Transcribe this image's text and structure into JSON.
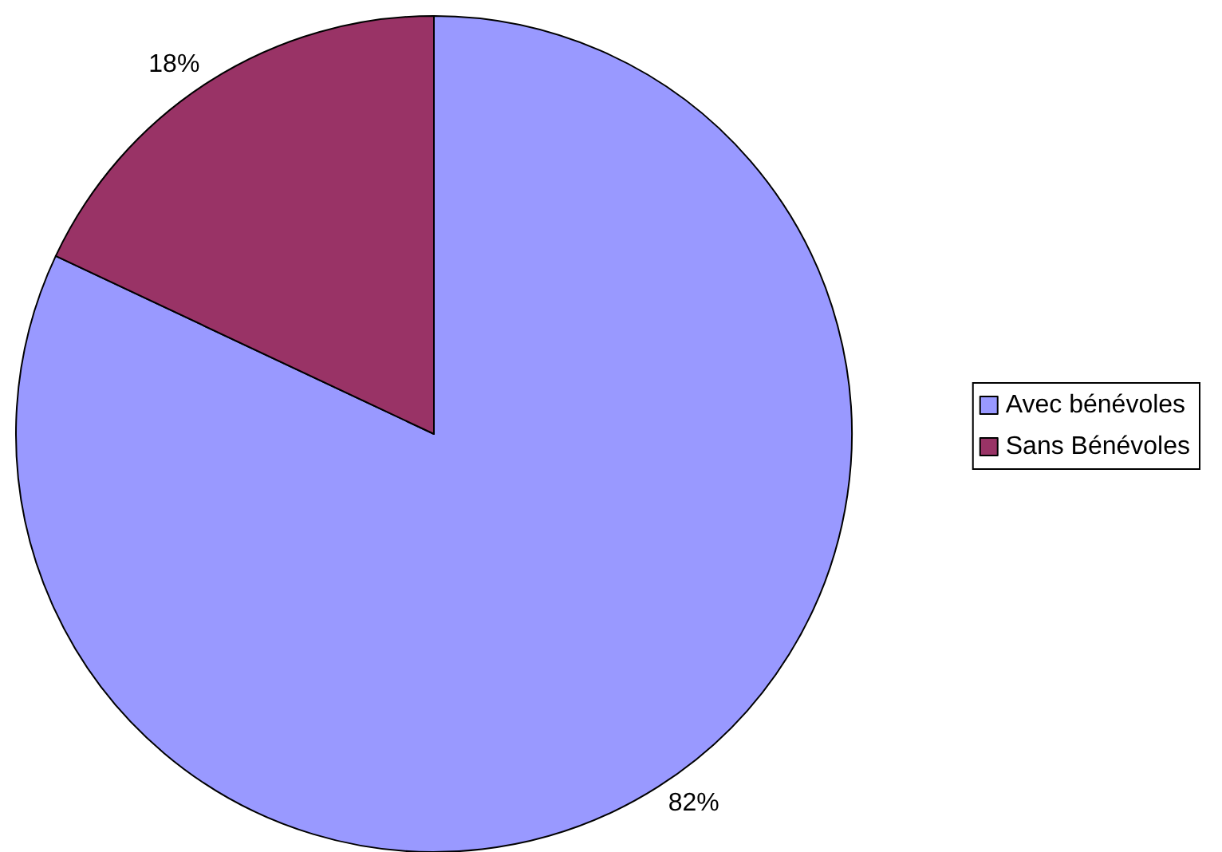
{
  "chart_data": {
    "type": "pie",
    "categories": [
      "Avec bénévoles",
      "Sans Bénévoles"
    ],
    "values": [
      82,
      18
    ],
    "colors": [
      "#9999ff",
      "#993366"
    ],
    "value_labels": [
      "82%",
      "18%"
    ],
    "legend": "right"
  }
}
